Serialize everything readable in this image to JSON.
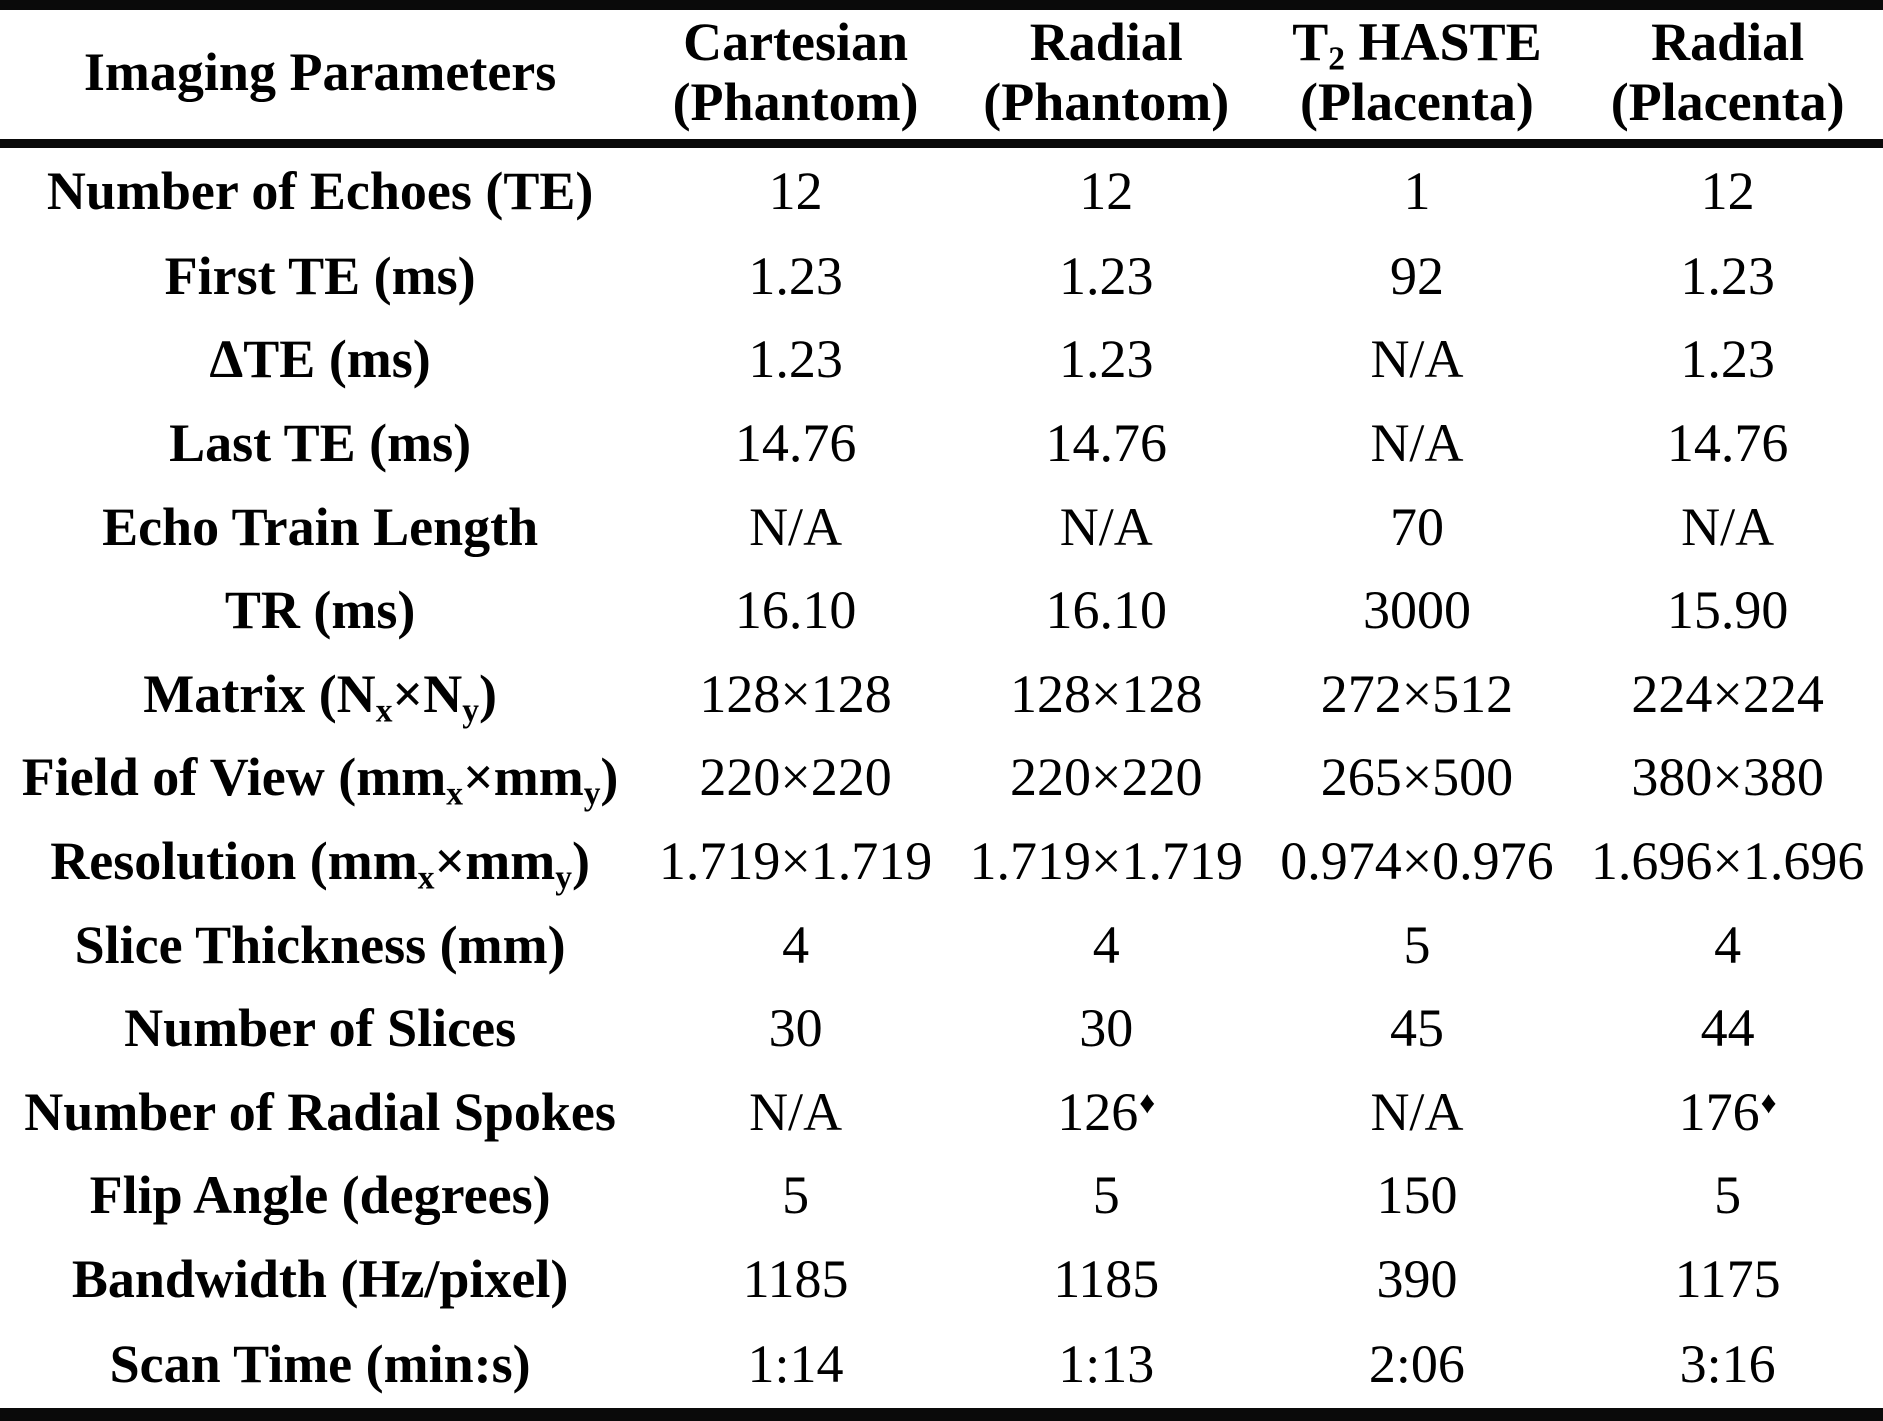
{
  "table": {
    "title": "Imaging parameters comparison table",
    "header": {
      "param_col": "Imaging Parameters",
      "data_cols": [
        "Cartesian<br>(Phantom)",
        "Radial<br>(Phantom)",
        "T<sub>2</sub> HASTE<br>(Placenta)",
        "Radial<br>(Placenta)"
      ]
    },
    "rows": [
      {
        "param": "Number of Echoes (TE)",
        "values": [
          "12",
          "12",
          "1",
          "12"
        ]
      },
      {
        "param": "First TE (ms)",
        "values": [
          "1.23",
          "1.23",
          "92",
          "1.23"
        ]
      },
      {
        "param": "ΔTE (ms)",
        "values": [
          "1.23",
          "1.23",
          "N/A",
          "1.23"
        ]
      },
      {
        "param": "Last TE (ms)",
        "values": [
          "14.76",
          "14.76",
          "N/A",
          "14.76"
        ]
      },
      {
        "param": "Echo Train Length",
        "values": [
          "N/A",
          "N/A",
          "70",
          "N/A"
        ]
      },
      {
        "param": "TR (ms)",
        "values": [
          "16.10",
          "16.10",
          "3000",
          "15.90"
        ]
      },
      {
        "param": "Matrix (N<sub>x</sub>×N<sub>y</sub>)",
        "values": [
          "128×128",
          "128×128",
          "272×512",
          "224×224"
        ]
      },
      {
        "param": "Field of View (mm<sub>x</sub>×mm<sub>y</sub>)",
        "values": [
          "220×220",
          "220×220",
          "265×500",
          "380×380"
        ]
      },
      {
        "param": "Resolution (mm<sub>x</sub>×mm<sub>y</sub>)",
        "values": [
          "1.719×1.719",
          "1.719×1.719",
          "0.974×0.976",
          "1.696×1.696"
        ]
      },
      {
        "param": "Slice Thickness (mm)",
        "values": [
          "4",
          "4",
          "5",
          "4"
        ]
      },
      {
        "param": "Number of Slices",
        "values": [
          "30",
          "30",
          "45",
          "44"
        ]
      },
      {
        "param": "Number of Radial Spokes",
        "values": [
          "N/A",
          "126<sup class=\"note\">♦</sup>",
          "N/A",
          "176<sup class=\"note\">♦</sup>"
        ]
      },
      {
        "param": "Flip Angle (degrees)",
        "values": [
          "5",
          "5",
          "150",
          "5"
        ]
      },
      {
        "param": "Bandwidth (Hz/pixel)",
        "values": [
          "1185",
          "1185",
          "390",
          "1175"
        ]
      },
      {
        "param": "Scan Time (min:s)",
        "values": [
          "1:14",
          "1:13",
          "2:06",
          "3:16"
        ]
      }
    ],
    "footnote_marker": "♦",
    "text_color": "#000000",
    "rule_color": "#0a0a0a",
    "background_color": "#ffffff"
  }
}
